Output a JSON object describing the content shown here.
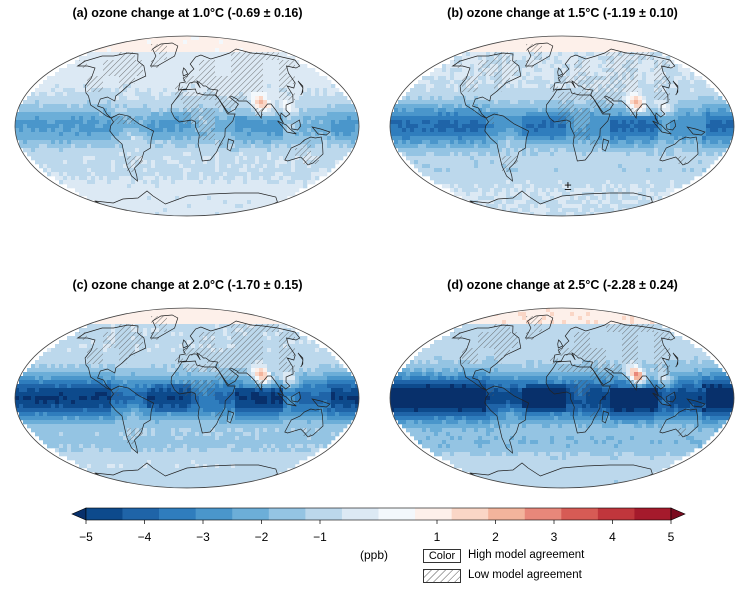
{
  "panels": [
    {
      "title": "(a) ozone change at 1.0°C (-0.69 ± 0.16)",
      "level": 1
    },
    {
      "title": "(b) ozone change at 1.5°C (-1.19 ± 0.10)",
      "level": 2,
      "marker": "±"
    },
    {
      "title": "(c) ozone change at 2.0°C (-1.70 ± 0.15)",
      "level": 3
    },
    {
      "title": "(d) ozone change at 2.5°C (-2.28 ± 0.24)",
      "level": 4
    }
  ],
  "colorbar": {
    "units": "(ppb)",
    "ticks": [
      "−5",
      "−4",
      "−3",
      "−2",
      "−1",
      "1",
      "2",
      "3",
      "4",
      "5"
    ],
    "tick_values": [
      -5,
      -4,
      -3,
      -2,
      -1,
      1,
      2,
      3,
      4,
      5
    ],
    "colors": [
      "#08306b",
      "#0d4a8c",
      "#1f64a8",
      "#2f7dbd",
      "#4a96cb",
      "#6caed8",
      "#94c4e3",
      "#bcd8ec",
      "#dce9f4",
      "#f3f8fc",
      "#fdf0ea",
      "#fad6c6",
      "#f3b49c",
      "#e8877a",
      "#d75b55",
      "#c0363c",
      "#a51a2c",
      "#7a0b1f"
    ],
    "range": [
      -5,
      5
    ]
  },
  "legend": {
    "color_swatch_label": "Color",
    "high_agreement": "High model agreement",
    "low_agreement": "Low model agreement"
  }
}
